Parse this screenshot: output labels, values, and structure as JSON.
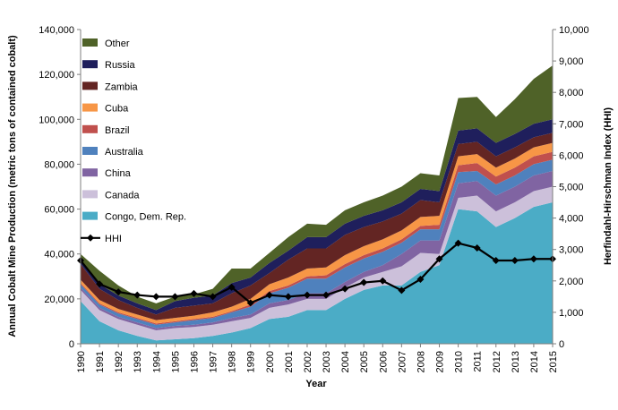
{
  "chart_data": {
    "type": "area",
    "subtype": "stacked-area-with-line",
    "xlabel": "Year",
    "ylabel_left": "Annual Cobalt Mine Production (metric tons of contained cobalt)",
    "ylabel_right": "Herfindahl-Hirschman Index (HHI)",
    "ylim_left": [
      0,
      140000
    ],
    "ylim_right": [
      0,
      10000
    ],
    "yticks_left": [
      "0",
      "20,000",
      "40,000",
      "60,000",
      "80,000",
      "100,000",
      "120,000",
      "140,000"
    ],
    "yticks_right": [
      "0",
      "1,000",
      "2,000",
      "3,000",
      "4,000",
      "5,000",
      "6,000",
      "7,000",
      "8,000",
      "9,000",
      "10,000"
    ],
    "legend_position": "top-left",
    "x": [
      "1990",
      "1991",
      "1992",
      "1993",
      "1994",
      "1995",
      "1996",
      "1997",
      "1998",
      "1999",
      "2000",
      "2001",
      "2002",
      "2003",
      "2004",
      "2005",
      "2006",
      "2007",
      "2008",
      "2009",
      "2010",
      "2011",
      "2012",
      "2013",
      "2014",
      "2015"
    ],
    "series": [
      {
        "name": "Congo, Dem. Rep.",
        "color": "#4bacc6",
        "values": [
          19000,
          10000,
          6000,
          3500,
          1500,
          2000,
          2500,
          3500,
          5000,
          7000,
          11000,
          12000,
          15000,
          15000,
          20000,
          24000,
          26000,
          26000,
          32000,
          35000,
          60000,
          59000,
          52000,
          56000,
          61000,
          63000
        ]
      },
      {
        "name": "Canada",
        "color": "#ccc0da",
        "values": [
          5000,
          5000,
          5000,
          5000,
          4500,
          5000,
          5000,
          5000,
          5000,
          4500,
          5000,
          5500,
          5000,
          5000,
          5000,
          5500,
          6000,
          8500,
          8500,
          5000,
          5000,
          7000,
          7000,
          7000,
          7000,
          7000
        ]
      },
      {
        "name": "China",
        "color": "#8064a2",
        "values": [
          1000,
          1000,
          1000,
          1000,
          1000,
          1000,
          1000,
          1000,
          1500,
          1500,
          2000,
          2000,
          2500,
          2500,
          2500,
          2500,
          3000,
          5500,
          5500,
          6000,
          6500,
          6500,
          7000,
          7000,
          7000,
          7000
        ]
      },
      {
        "name": "Australia",
        "color": "#4f81bd",
        "values": [
          1500,
          1500,
          1500,
          1500,
          1500,
          1500,
          2000,
          2000,
          2500,
          3500,
          4500,
          5500,
          6500,
          6500,
          6500,
          6000,
          6000,
          5000,
          5000,
          5000,
          5000,
          4500,
          5000,
          5000,
          5000,
          5000
        ]
      },
      {
        "name": "Brazil",
        "color": "#c0504d",
        "values": [
          500,
          500,
          500,
          500,
          500,
          500,
          500,
          500,
          500,
          1000,
          1000,
          1000,
          1000,
          1500,
          1500,
          1500,
          1500,
          1500,
          1500,
          2000,
          3000,
          3500,
          3500,
          3500,
          3500,
          3500
        ]
      },
      {
        "name": "Cuba",
        "color": "#f79646",
        "values": [
          1500,
          1500,
          1500,
          1500,
          1500,
          1500,
          1500,
          2000,
          2000,
          2500,
          3000,
          3500,
          3500,
          3500,
          4000,
          4000,
          4000,
          4000,
          4000,
          4000,
          4000,
          4000,
          4000,
          4000,
          4000,
          4000
        ]
      },
      {
        "name": "Zambia",
        "color": "#632523",
        "values": [
          7000,
          5000,
          4000,
          3000,
          2500,
          4500,
          4500,
          4000,
          6000,
          6000,
          5000,
          8000,
          9000,
          8500,
          9000,
          8500,
          8000,
          7500,
          7500,
          6000,
          5500,
          5500,
          5000,
          5000,
          4500,
          4500
        ]
      },
      {
        "name": "Russia",
        "color": "#1f1f5c",
        "values": [
          2000,
          2000,
          2000,
          2000,
          2000,
          3000,
          3500,
          3500,
          4500,
          3500,
          4500,
          4000,
          5000,
          5000,
          5000,
          5000,
          5000,
          5000,
          5000,
          5000,
          6000,
          6000,
          6000,
          6000,
          6000,
          6000
        ]
      },
      {
        "name": "Other",
        "color": "#4f6228",
        "values": [
          2500,
          6000,
          4500,
          3000,
          3000,
          2000,
          1500,
          3000,
          6500,
          4000,
          4500,
          6000,
          6000,
          5500,
          6000,
          6000,
          6500,
          7000,
          7000,
          7000,
          14500,
          14000,
          11500,
          15500,
          20000,
          24000
        ]
      }
    ],
    "line_series": {
      "name": "HHI",
      "color": "#000000",
      "axis": "right",
      "values": [
        2650,
        1900,
        1650,
        1550,
        1500,
        1500,
        1600,
        1500,
        1800,
        1300,
        1550,
        1500,
        1550,
        1550,
        1750,
        1950,
        2000,
        1700,
        2050,
        2700,
        3200,
        3050,
        2650,
        2650,
        2700,
        2700
      ]
    }
  }
}
